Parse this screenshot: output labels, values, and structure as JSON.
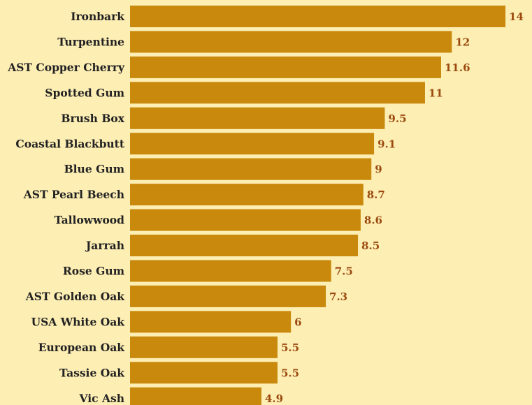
{
  "chart_data": {
    "type": "bar",
    "orientation": "horizontal",
    "categories": [
      "Ironbark",
      "Turpentine",
      "AST Copper Cherry",
      "Spotted Gum",
      "Brush Box",
      "Coastal Blackbutt",
      "Blue Gum",
      "AST Pearl Beech",
      "Tallowwood",
      "Jarrah",
      "Rose Gum",
      "AST Golden Oak",
      "USA White Oak",
      "European Oak",
      "Tassie Oak",
      "Vic Ash"
    ],
    "values": [
      14,
      12,
      11.6,
      11,
      9.5,
      9.1,
      9,
      8.7,
      8.6,
      8.5,
      7.5,
      7.3,
      6,
      5.5,
      5.5,
      4.9
    ],
    "value_labels": [
      "14",
      "12",
      "11.6",
      "11",
      "9.5",
      "9.1",
      "9",
      "8.7",
      "8.6",
      "8.5",
      "7.5",
      "7.3",
      "6",
      "5.5",
      "5.5",
      "4.9"
    ],
    "title": "",
    "xlabel": "",
    "ylabel": "",
    "xlim": [
      0,
      14
    ],
    "grid": false,
    "legend": "none",
    "colors": {
      "background": "#fdeeb4",
      "bar": "#c9890d",
      "value_label": "#9b4a0f",
      "category_label": "#222222"
    }
  }
}
